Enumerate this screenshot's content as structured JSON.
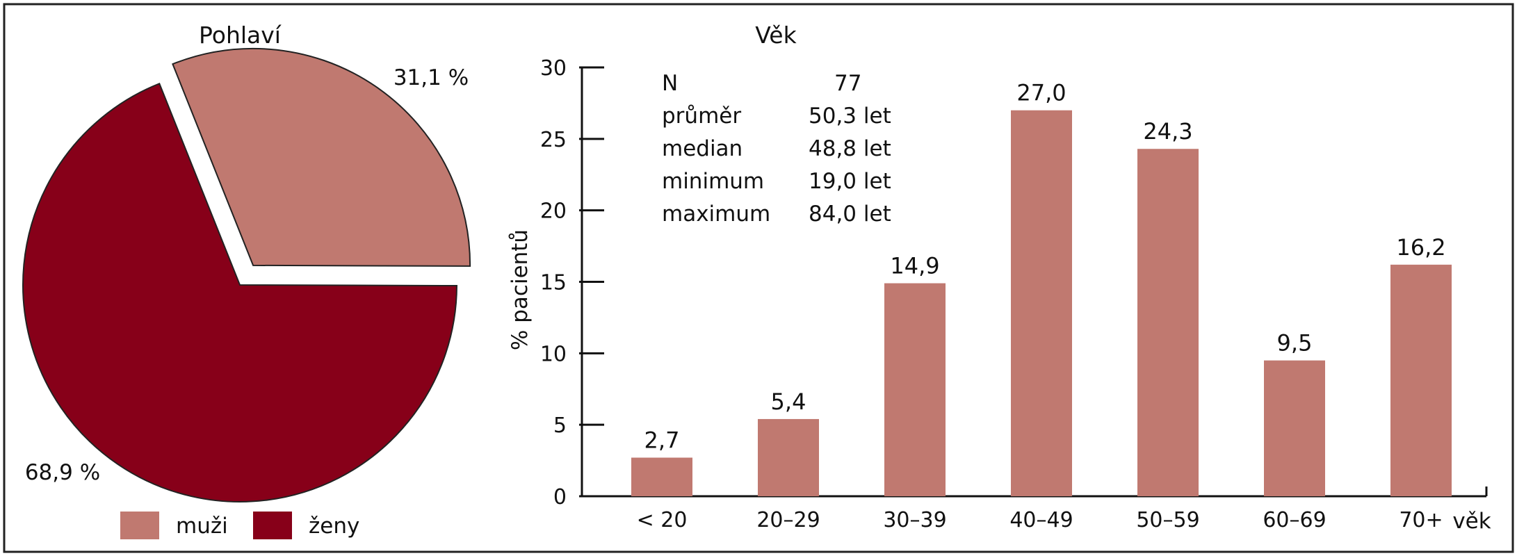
{
  "chart_data": [
    {
      "type": "pie",
      "title": "Pohlaví",
      "slices": [
        {
          "label": "muži",
          "value": 31.1,
          "value_label": "31,1 %",
          "color": "#c07970",
          "exploded": true
        },
        {
          "label": "ženy",
          "value": 68.9,
          "value_label": "68,9 %",
          "color": "#870019",
          "exploded": false
        }
      ],
      "legend": [
        "muži",
        "ženy"
      ],
      "legend_placement": "bottom"
    },
    {
      "type": "bar",
      "title": "Věk",
      "categories": [
        "< 20",
        "20–29",
        "30–39",
        "40–49",
        "50–59",
        "60–69",
        "70+"
      ],
      "values": [
        2.7,
        5.4,
        14.9,
        27.0,
        24.3,
        9.5,
        16.2
      ],
      "value_labels": [
        "2,7",
        "5,4",
        "14,9",
        "27,0",
        "24,3",
        "9,5",
        "16,2"
      ],
      "xlabel": "věk",
      "ylabel": "% pacientů",
      "ylim": [
        0,
        30
      ],
      "yticks": [
        0,
        5,
        10,
        15,
        20,
        25,
        30
      ],
      "bar_color": "#c07970",
      "grid": false,
      "stats": [
        {
          "label": "N",
          "value": "77"
        },
        {
          "label": "průměr",
          "value": "50,3 let"
        },
        {
          "label": "median",
          "value": "48,8 let"
        },
        {
          "label": "minimum",
          "value": "19,0 let"
        },
        {
          "label": "maximum",
          "value": "84,0 let"
        }
      ]
    }
  ]
}
